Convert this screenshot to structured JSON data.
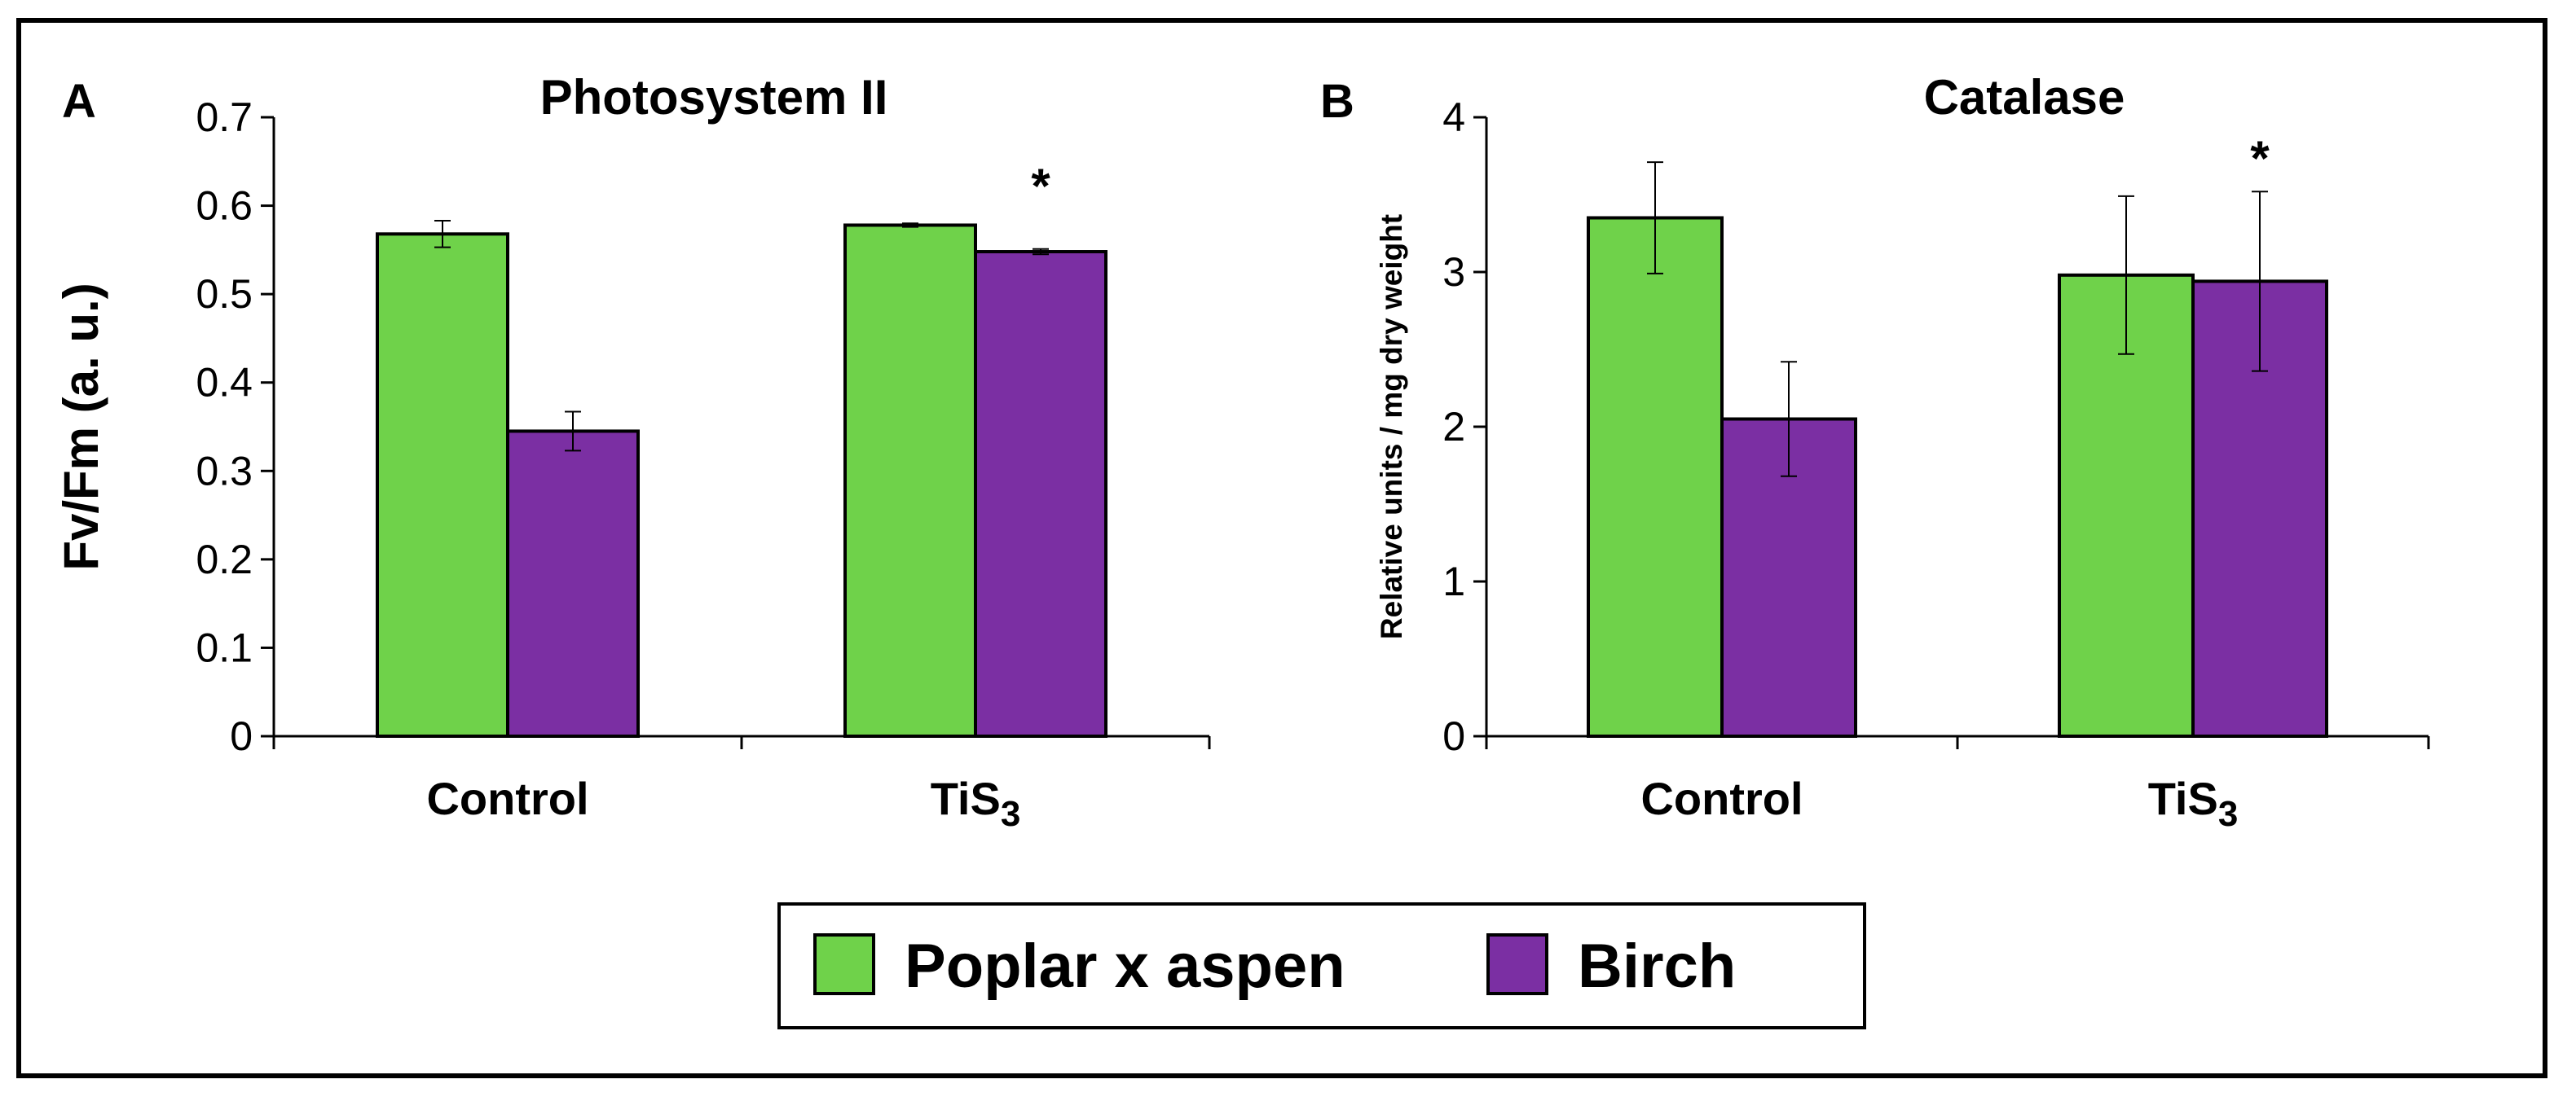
{
  "chart_data": [
    {
      "panel": "A",
      "type": "bar",
      "title": "Photosystem II",
      "ylabel": "Fv/Fm (a. u.)",
      "xlabel": "",
      "ylim": [
        0,
        0.7
      ],
      "yticks": [
        0,
        0.1,
        0.2,
        0.3,
        0.4,
        0.5,
        0.6,
        0.7
      ],
      "categories": [
        "Control",
        "TiS3"
      ],
      "category_labels": [
        {
          "main": "Control",
          "sub": ""
        },
        {
          "main": "TiS",
          "sub": "3"
        }
      ],
      "series": [
        {
          "name": "Poplar x aspen",
          "color": "#6fd24a",
          "values": [
            0.568,
            0.578
          ],
          "errors": [
            0.015,
            0.002
          ]
        },
        {
          "name": "Birch",
          "color": "#7b2fa3",
          "values": [
            0.345,
            0.548
          ],
          "errors": [
            0.022,
            0.003
          ]
        }
      ],
      "annotations": [
        {
          "text": "*",
          "category": 1,
          "series": 1
        }
      ]
    },
    {
      "panel": "B",
      "type": "bar",
      "title": "Catalase",
      "ylabel": "Relative units / mg dry weight",
      "xlabel": "",
      "ylim": [
        0,
        4
      ],
      "yticks": [
        0,
        1,
        2,
        3,
        4
      ],
      "categories": [
        "Control",
        "TiS3"
      ],
      "category_labels": [
        {
          "main": "Control",
          "sub": ""
        },
        {
          "main": "TiS",
          "sub": "3"
        }
      ],
      "series": [
        {
          "name": "Poplar x aspen",
          "color": "#6fd24a",
          "values": [
            3.35,
            2.98
          ],
          "errors": [
            0.36,
            0.51
          ]
        },
        {
          "name": "Birch",
          "color": "#7b2fa3",
          "values": [
            2.05,
            2.94
          ],
          "errors": [
            0.37,
            0.58
          ]
        }
      ],
      "annotations": [
        {
          "text": "*",
          "category": 1,
          "series": 1
        }
      ]
    }
  ],
  "legend": {
    "items": [
      {
        "label": "Poplar x aspen",
        "color": "#6fd24a"
      },
      {
        "label": "Birch",
        "color": "#7b2fa3"
      }
    ]
  }
}
